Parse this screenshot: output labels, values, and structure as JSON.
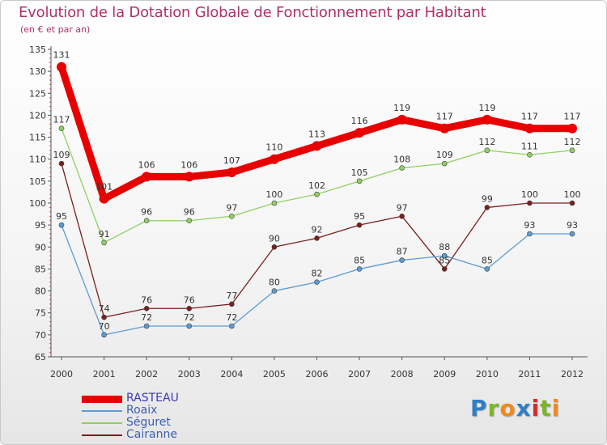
{
  "title": "Evolution de la Dotation Globale de Fonctionnement par Habitant",
  "subtitle": "(en € et par an)",
  "logo": {
    "text": "Proxiti",
    "letters": [
      "P",
      "r",
      "o",
      "x",
      "i",
      "t",
      "i"
    ],
    "letter_colors": [
      "#2e7fc4",
      "#7ab52a",
      "#f08a1c",
      "#2e7fc4",
      "#d42a2a",
      "#7ab52a",
      "#f08a1c"
    ]
  },
  "colors": {
    "title": "#b03068",
    "axis": "#555555",
    "tick_label": "#333333",
    "grid_tick": "#c0504d",
    "value_label": "#333333"
  },
  "chart_data": {
    "type": "line",
    "title": "Evolution de la Dotation Globale de Fonctionnement par Habitant",
    "subtitle": "(en € et par an)",
    "xlabel": "",
    "ylabel": "",
    "categories": [
      "2000",
      "2001",
      "2002",
      "2003",
      "2004",
      "2005",
      "2006",
      "2007",
      "2008",
      "2009",
      "2010",
      "2011",
      "2012"
    ],
    "ylim": [
      65,
      135
    ],
    "yticks": [
      65,
      70,
      75,
      80,
      85,
      90,
      95,
      100,
      105,
      110,
      115,
      120,
      125,
      130,
      135
    ],
    "grid": false,
    "legend_position": "bottom-left",
    "series": [
      {
        "name": "RASTEAU",
        "color": "#e80000",
        "emphasis": true,
        "values": [
          131,
          101,
          106,
          106,
          107,
          110,
          113,
          116,
          119,
          117,
          119,
          117,
          117
        ],
        "labels": [
          "131",
          "101",
          "106",
          "106",
          "107",
          "110",
          "113",
          "116",
          "119",
          "117",
          "119",
          "117",
          "117"
        ]
      },
      {
        "name": "Roaix",
        "color": "#5b9bd5",
        "values": [
          95,
          70,
          72,
          72,
          72,
          80,
          82,
          85,
          87,
          88,
          85,
          93,
          93
        ],
        "labels": [
          "95",
          "70",
          "72",
          "72",
          "72",
          "80",
          "82",
          "85",
          "87",
          "88",
          "85",
          "93",
          "93"
        ]
      },
      {
        "name": "Séguret",
        "color": "#90d060",
        "values": [
          117,
          91,
          96,
          96,
          97,
          100,
          102,
          105,
          108,
          109,
          112,
          111,
          112
        ],
        "labels": [
          "117",
          "91",
          "96",
          "96",
          "97",
          "100",
          "102",
          "105",
          "108",
          "109",
          "112",
          "111",
          "112"
        ]
      },
      {
        "name": "Cairanne",
        "color": "#7a1e1e",
        "values": [
          109,
          74,
          76,
          76,
          77,
          90,
          92,
          95,
          97,
          85,
          99,
          100,
          100
        ],
        "labels": [
          "109",
          "74",
          "76",
          "76",
          "77",
          "90",
          "92",
          "95",
          "97",
          "85",
          "99",
          "100",
          "100"
        ]
      }
    ]
  }
}
